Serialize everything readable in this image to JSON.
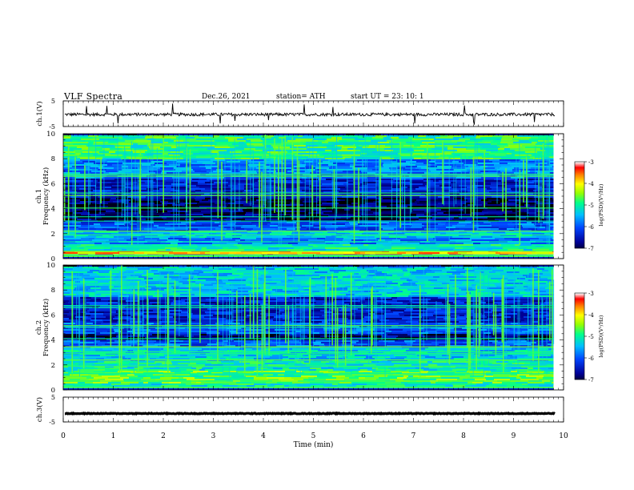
{
  "header": {
    "title": "VLF  Spectra",
    "date": "Dec.26, 2021",
    "station": "station= ATH",
    "start": "start  UT  =   23: 10: 1"
  },
  "colors": {
    "waveform": "#000000",
    "spectrogram_background": "#000000",
    "colormap": [
      "#000000",
      "#0000b4",
      "#0050ff",
      "#00c8ff",
      "#00ff80",
      "#a0ff00",
      "#ffff00",
      "#ff8000",
      "#ff0000",
      "#ffffff"
    ]
  },
  "chart_data": [
    {
      "id": "ch1-waveform",
      "type": "line",
      "ylabel": "ch.1(V)",
      "ylim": [
        -5,
        5
      ],
      "yticks": [
        5,
        -5
      ],
      "xlim": [
        0,
        10
      ],
      "series": [
        {
          "values_description_level": -0.3,
          "noise_amplitude": 0.6
        }
      ]
    },
    {
      "id": "ch1-spectrogram",
      "type": "heatmap",
      "ylabel": "Frequency (kHz)",
      "channel_label": "ch.1",
      "ylim": [
        0,
        10
      ],
      "yticks": [
        0,
        2,
        4,
        6,
        8,
        10
      ],
      "xlim": [
        0,
        9.8
      ],
      "colorbar": {
        "label": "log(PSD)(V²/Hz)",
        "range": [
          -7,
          -3
        ],
        "ticks": [
          "-3",
          "-4",
          "-5",
          "-6",
          "-7"
        ]
      },
      "bands_khz": [
        {
          "from": 0.0,
          "to": 0.35,
          "level": 0.55
        },
        {
          "from": 0.35,
          "to": 0.75,
          "level": 0.8
        },
        {
          "from": 0.75,
          "to": 1.2,
          "level": 0.5
        },
        {
          "from": 1.2,
          "to": 1.7,
          "level": 0.35
        },
        {
          "from": 1.7,
          "to": 2.3,
          "level": 0.45
        },
        {
          "from": 2.3,
          "to": 3.0,
          "level": 0.3
        },
        {
          "from": 3.0,
          "to": 5.0,
          "level": 0.08
        },
        {
          "from": 5.0,
          "to": 6.5,
          "level": 0.2
        },
        {
          "from": 6.5,
          "to": 8.0,
          "level": 0.35
        },
        {
          "from": 8.0,
          "to": 10.0,
          "level": 0.55
        }
      ],
      "lines_khz": [
        0.3,
        0.6,
        0.95,
        1.35,
        1.9,
        2.2,
        3.0,
        3.35,
        4.05,
        5.05,
        5.25,
        6.6,
        6.75,
        8.2
      ]
    },
    {
      "id": "ch2-spectrogram",
      "type": "heatmap",
      "ylabel": "Frequency (kHz)",
      "channel_label": "ch.2",
      "ylim": [
        0,
        10
      ],
      "yticks": [
        0,
        2,
        4,
        6,
        8,
        10
      ],
      "xlim": [
        0,
        9.8
      ],
      "colorbar": {
        "label": "log(PSD)(V²/Hz)",
        "range": [
          -7,
          -3
        ],
        "ticks": [
          "-3",
          "-4",
          "-5",
          "-6",
          "-7"
        ]
      },
      "bands_khz": [
        {
          "from": 0.0,
          "to": 0.6,
          "level": 0.5
        },
        {
          "from": 0.6,
          "to": 1.6,
          "level": 0.6
        },
        {
          "from": 1.6,
          "to": 2.4,
          "level": 0.5
        },
        {
          "from": 2.4,
          "to": 3.5,
          "level": 0.45
        },
        {
          "from": 3.5,
          "to": 4.0,
          "level": 0.3
        },
        {
          "from": 4.0,
          "to": 4.6,
          "level": 0.1
        },
        {
          "from": 4.6,
          "to": 5.5,
          "level": 0.3
        },
        {
          "from": 5.5,
          "to": 7.5,
          "level": 0.2
        },
        {
          "from": 7.5,
          "to": 10.0,
          "level": 0.45
        }
      ],
      "lines_khz": [
        0.7,
        1.3,
        1.9,
        2.4,
        2.9,
        3.05,
        3.45,
        4.1,
        5.0,
        5.15,
        6.6,
        6.75
      ]
    },
    {
      "id": "ch3-waveform",
      "type": "line",
      "ylabel": "ch.3(V)",
      "ylim": [
        -5,
        5
      ],
      "yticks": [
        5,
        -5
      ],
      "xlim": [
        0,
        10
      ],
      "xlabel": "Time  (min)",
      "xticks": [
        0,
        1,
        2,
        3,
        4,
        5,
        6,
        7,
        8,
        9,
        10
      ],
      "series": [
        {
          "values_description_level": -1.6,
          "noise_amplitude": 0.15
        }
      ]
    }
  ]
}
